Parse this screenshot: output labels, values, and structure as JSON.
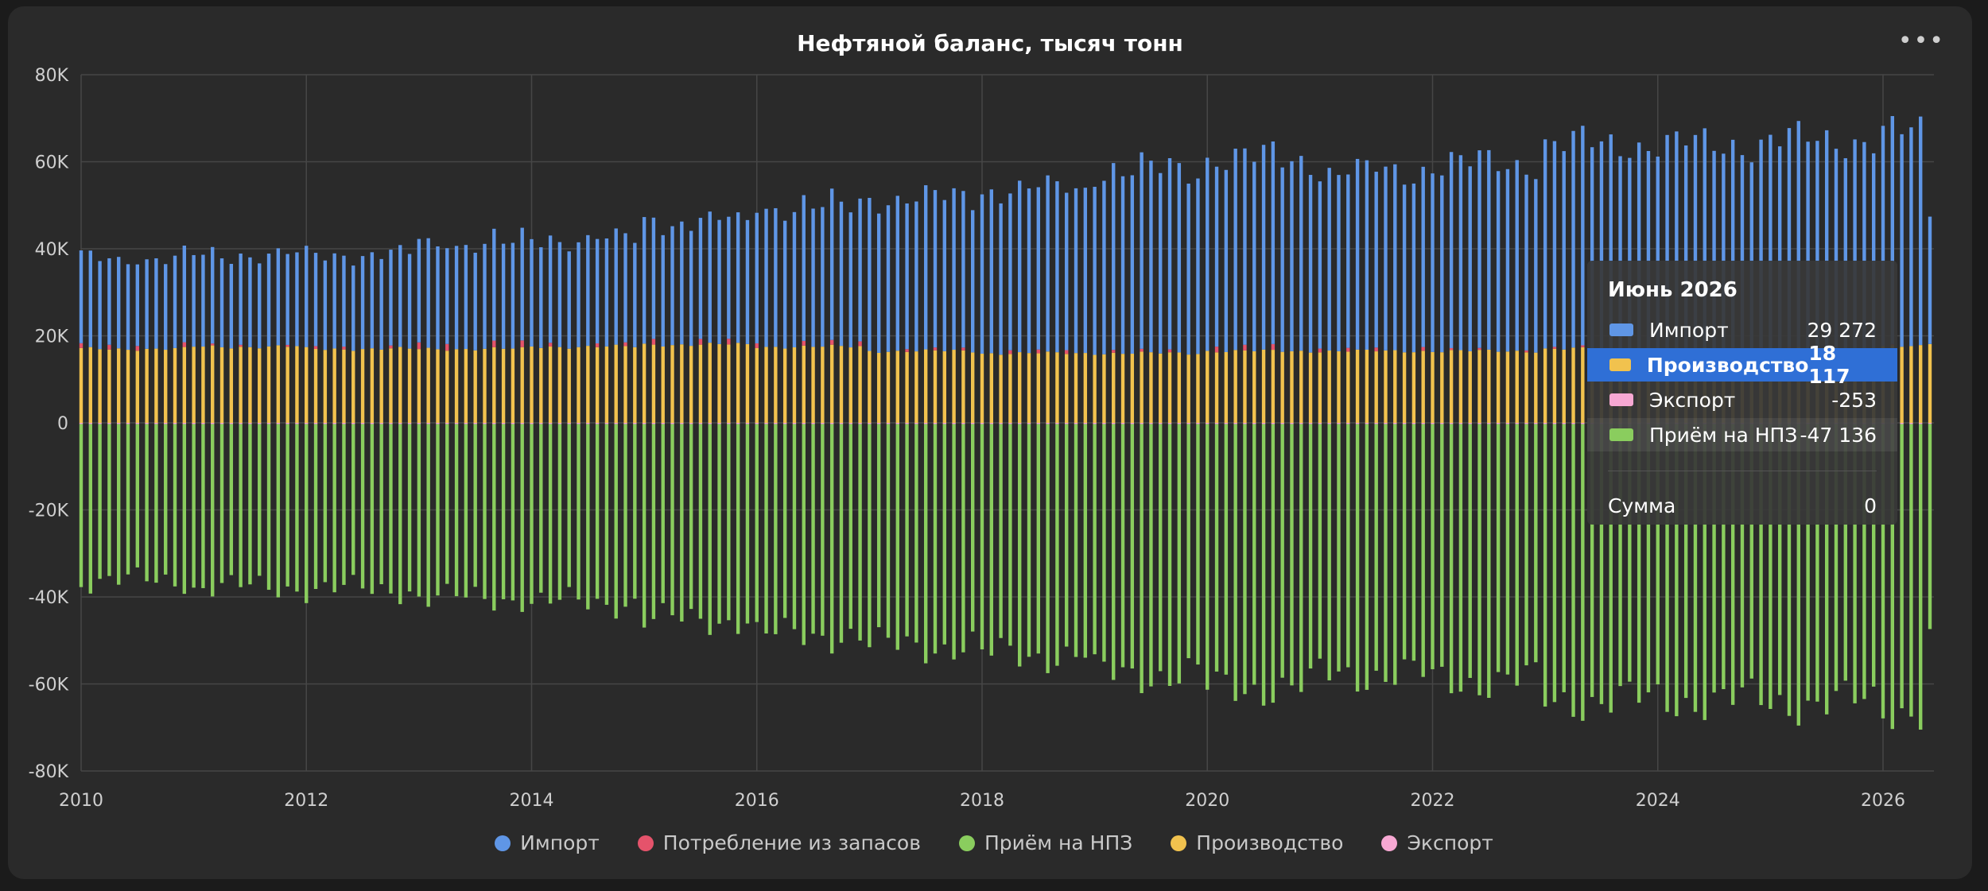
{
  "colors": {
    "import": "#5f96e6",
    "stock": "#e5536b",
    "refinery": "#8acd5e",
    "production": "#f1c24e",
    "export": "#f7a8d3",
    "grid": "#464646",
    "axis_text": "#cfcfcf"
  },
  "header": {
    "menu_icon": "more-horizontal-icon"
  },
  "chart_data": {
    "type": "bar",
    "stacked": true,
    "title": "Нефтяной баланс, тысяч тонн",
    "xlabel": "",
    "ylabel": "",
    "x_start": "2010-01",
    "x_end": "2026-06",
    "frequency": "monthly",
    "x_ticks": [
      "2010",
      "2012",
      "2014",
      "2016",
      "2018",
      "2020",
      "2022",
      "2024",
      "2026"
    ],
    "ylim": [
      -80000,
      80000
    ],
    "y_ticks": [
      {
        "value": 80000,
        "label": "80K"
      },
      {
        "value": 60000,
        "label": "60K"
      },
      {
        "value": 40000,
        "label": "40K"
      },
      {
        "value": 20000,
        "label": "20K"
      },
      {
        "value": 0,
        "label": "0"
      },
      {
        "value": -20000,
        "label": "-20K"
      },
      {
        "value": -40000,
        "label": "-40K"
      },
      {
        "value": -60000,
        "label": "-60K"
      },
      {
        "value": -80000,
        "label": "-80K"
      }
    ],
    "grid": true,
    "legend_position": "bottom",
    "series": [
      {
        "name": "Импорт",
        "color_key": "import",
        "annual_average": [
          20500,
          21000,
          21500,
          24000,
          24500,
          28000,
          32000,
          35000,
          37500,
          42000,
          44000,
          41000,
          43000,
          47000,
          47000,
          48000,
          49000
        ]
      },
      {
        "name": "Потребление из запасов",
        "color_key": "stock",
        "annual_average": [
          500,
          200,
          300,
          700,
          400,
          600,
          500,
          300,
          400,
          300,
          600,
          400,
          200,
          200,
          100,
          100,
          100
        ]
      },
      {
        "name": "Приём на НПЗ",
        "color_key": "refinery",
        "annual_average": [
          -36000,
          -37500,
          -38000,
          -40000,
          -41000,
          -45000,
          -48500,
          -51000,
          -53000,
          -57500,
          -60500,
          -57500,
          -59000,
          -63500,
          -63500,
          -64000,
          -65500
        ]
      },
      {
        "name": "Производство",
        "color_key": "production",
        "annual_average": [
          17000,
          17500,
          17000,
          17000,
          17500,
          18000,
          17500,
          16500,
          16000,
          16000,
          16500,
          16500,
          16500,
          17000,
          17000,
          17000,
          17500
        ]
      },
      {
        "name": "Экспорт",
        "color_key": "export",
        "annual_average": [
          -300,
          -300,
          -300,
          -300,
          -300,
          -300,
          -300,
          -300,
          -300,
          -300,
          -300,
          -300,
          -300,
          -300,
          -300,
          -300,
          -300
        ]
      }
    ],
    "tooltip": {
      "title": "Июнь 2026",
      "rows": [
        {
          "name": "Импорт",
          "value": "29 272",
          "color_key": "import",
          "style": "normal"
        },
        {
          "name": "Производство",
          "value": "18 117",
          "color_key": "production",
          "style": "highlight"
        },
        {
          "name": "Экспорт",
          "value": "-253",
          "color_key": "export",
          "style": "normal"
        },
        {
          "name": "Приём на НПЗ",
          "value": "-47 136",
          "color_key": "refinery",
          "style": "shaded"
        }
      ],
      "sum_label": "Сумма",
      "sum_value": "0"
    }
  }
}
